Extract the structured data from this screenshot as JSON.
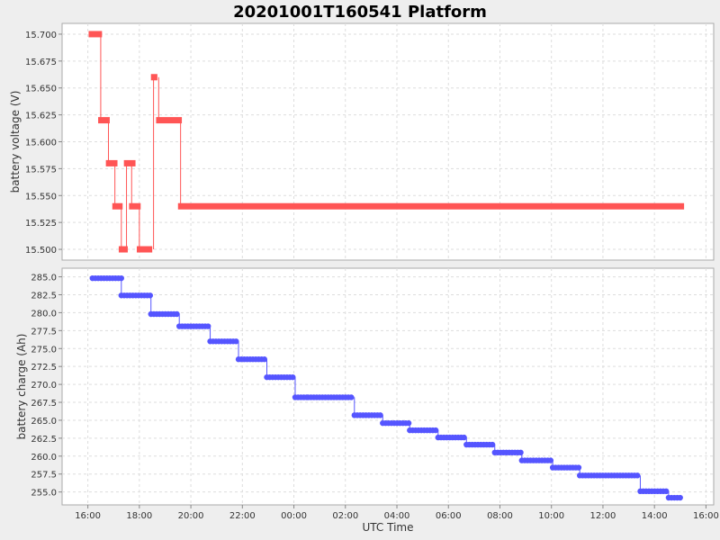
{
  "chart_data": [
    {
      "type": "line",
      "title": "20201001T160541 Platform",
      "xlabel": "",
      "ylabel": "battery voltage (V)",
      "ylim": [
        15.49,
        15.71
      ],
      "yticks": [
        "15.500",
        "15.525",
        "15.550",
        "15.575",
        "15.600",
        "15.625",
        "15.650",
        "15.675",
        "15.700"
      ],
      "xlim": [
        15.0,
        40.3
      ],
      "grid": true,
      "series_color": "#ff5555",
      "segments": [
        {
          "x0": 16.03,
          "x1": 16.55,
          "y": 15.7
        },
        {
          "x0": 16.4,
          "x1": 16.85,
          "y": 15.62
        },
        {
          "x0": 16.7,
          "x1": 17.15,
          "y": 15.58
        },
        {
          "x0": 16.95,
          "x1": 17.35,
          "y": 15.54
        },
        {
          "x0": 17.2,
          "x1": 17.55,
          "y": 15.5
        },
        {
          "x0": 17.4,
          "x1": 17.85,
          "y": 15.58
        },
        {
          "x0": 17.6,
          "x1": 18.05,
          "y": 15.54
        },
        {
          "x0": 17.9,
          "x1": 18.5,
          "y": 15.5
        },
        {
          "x0": 18.45,
          "x1": 18.7,
          "y": 15.66
        },
        {
          "x0": 18.65,
          "x1": 19.65,
          "y": 15.62
        },
        {
          "x0": 19.5,
          "x1": 39.15,
          "y": 15.54
        }
      ]
    },
    {
      "type": "scatter",
      "xlabel": "UTC Time",
      "ylabel": "battery charge (Ah)",
      "ylim": [
        253.2,
        286.2
      ],
      "yticks": [
        "255.0",
        "257.5",
        "260.0",
        "262.5",
        "265.0",
        "267.5",
        "270.0",
        "272.5",
        "275.0",
        "277.5",
        "280.0",
        "282.5",
        "285.0"
      ],
      "xlim": [
        15.0,
        40.3
      ],
      "xtick_values": [
        16,
        18,
        20,
        22,
        24,
        26,
        28,
        30,
        32,
        34,
        36,
        38,
        40
      ],
      "xticks": [
        "16:00",
        "18:00",
        "20:00",
        "22:00",
        "00:00",
        "02:00",
        "04:00",
        "06:00",
        "08:00",
        "10:00",
        "12:00",
        "14:00",
        "16:00"
      ],
      "grid": true,
      "series_color": "#5555ff",
      "steps": [
        {
          "x0": 16.18,
          "x1": 17.35,
          "y": 284.8
        },
        {
          "x0": 17.3,
          "x1": 18.45,
          "y": 282.4
        },
        {
          "x0": 18.45,
          "x1": 19.55,
          "y": 279.8
        },
        {
          "x0": 19.55,
          "x1": 20.75,
          "y": 278.1
        },
        {
          "x0": 20.75,
          "x1": 21.85,
          "y": 276.0
        },
        {
          "x0": 21.85,
          "x1": 22.95,
          "y": 273.5
        },
        {
          "x0": 22.95,
          "x1": 24.05,
          "y": 271.0
        },
        {
          "x0": 24.05,
          "x1": 24.55,
          "y": 268.2
        },
        {
          "x0": 24.55,
          "x1": 26.25,
          "y": 268.2
        },
        {
          "x0": 26.35,
          "x1": 27.45,
          "y": 265.7
        },
        {
          "x0": 27.45,
          "x1": 28.5,
          "y": 264.6
        },
        {
          "x0": 28.5,
          "x1": 29.6,
          "y": 263.6
        },
        {
          "x0": 29.6,
          "x1": 30.7,
          "y": 262.6
        },
        {
          "x0": 30.7,
          "x1": 31.8,
          "y": 261.6
        },
        {
          "x0": 31.8,
          "x1": 32.85,
          "y": 260.5
        },
        {
          "x0": 32.85,
          "x1": 34.05,
          "y": 259.4
        },
        {
          "x0": 34.05,
          "x1": 35.1,
          "y": 258.4
        },
        {
          "x0": 35.1,
          "x1": 37.35,
          "y": 257.3
        },
        {
          "x0": 37.45,
          "x1": 38.55,
          "y": 255.1
        },
        {
          "x0": 38.55,
          "x1": 39.1,
          "y": 254.2
        }
      ]
    }
  ]
}
